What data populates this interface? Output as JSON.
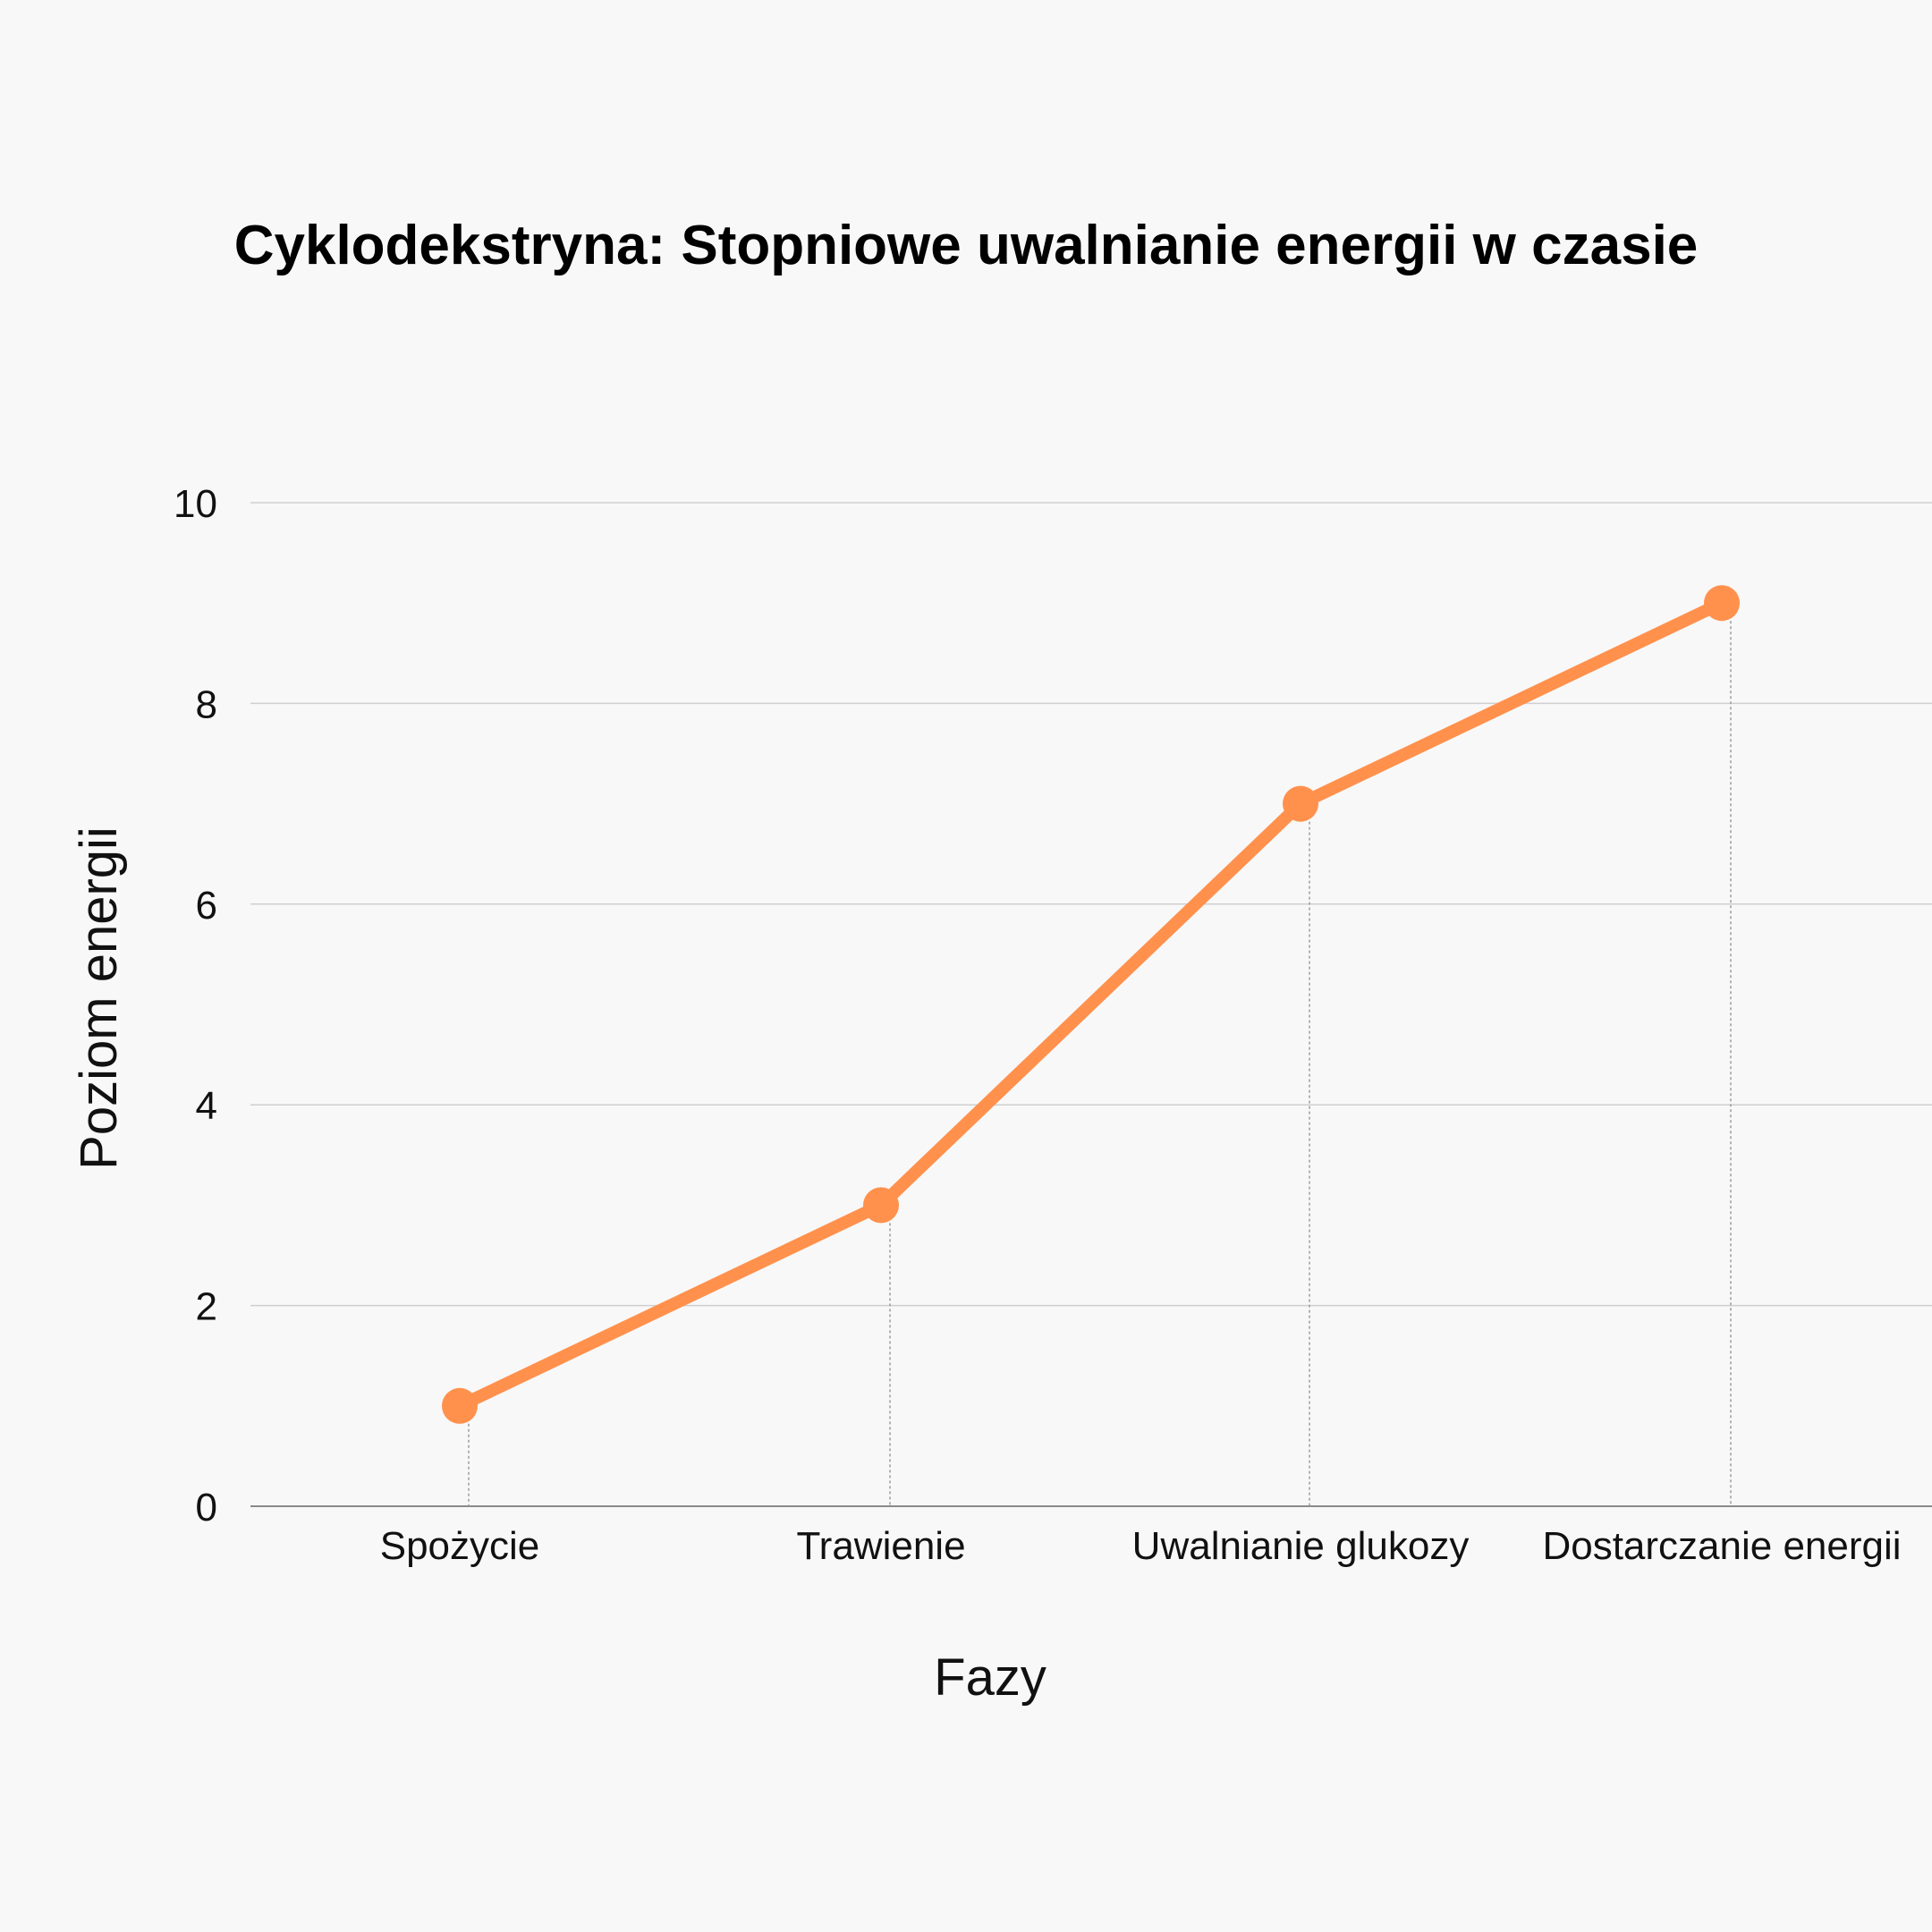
{
  "chart_data": {
    "type": "line",
    "title": "Cyklodekstryna: Stopniowe uwalnianie energii w czasie",
    "xlabel": "Fazy",
    "ylabel": "Poziom energii",
    "categories": [
      "Spożycie",
      "Trawienie",
      "Uwalnianie glukozy",
      "Dostarczanie energii"
    ],
    "series": [
      {
        "values": [
          1,
          3,
          7,
          9
        ],
        "color": "#ff914d"
      }
    ],
    "ylim": [
      0,
      10
    ],
    "yticks": [
      0,
      2,
      4,
      6,
      8,
      10
    ],
    "grid": true,
    "legend": "none"
  }
}
